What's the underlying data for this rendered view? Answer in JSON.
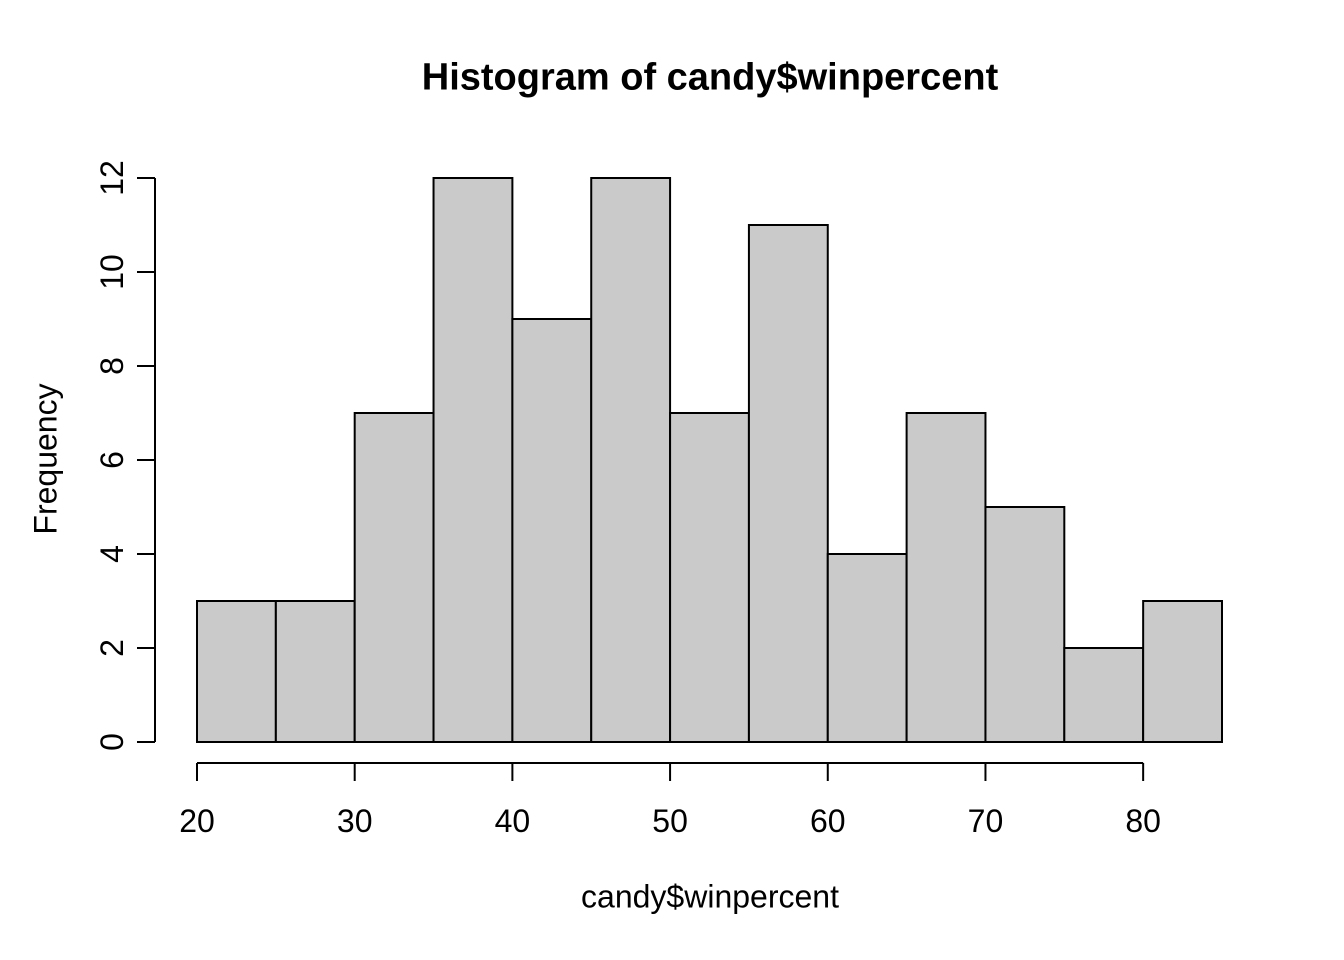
{
  "chart_data": {
    "type": "bar",
    "subtype": "histogram",
    "title": "Histogram of candy$winpercent",
    "xlabel": "candy$winpercent",
    "ylabel": "Frequency",
    "bin_width": 5,
    "bin_edges": [
      20,
      25,
      30,
      35,
      40,
      45,
      50,
      55,
      60,
      65,
      70,
      75,
      80,
      85
    ],
    "counts": [
      3,
      3,
      7,
      12,
      9,
      12,
      7,
      11,
      4,
      7,
      5,
      2,
      3
    ],
    "x_ticks": [
      20,
      30,
      40,
      50,
      60,
      70,
      80
    ],
    "y_ticks": [
      0,
      2,
      4,
      6,
      8,
      10,
      12
    ],
    "xlim": [
      20,
      85
    ],
    "ylim": [
      0,
      12
    ],
    "grid": false,
    "legend": null,
    "bar_fill": "#CACACA",
    "bar_border": "#000000",
    "axis_color": "#000000",
    "background": "#FFFFFF"
  }
}
